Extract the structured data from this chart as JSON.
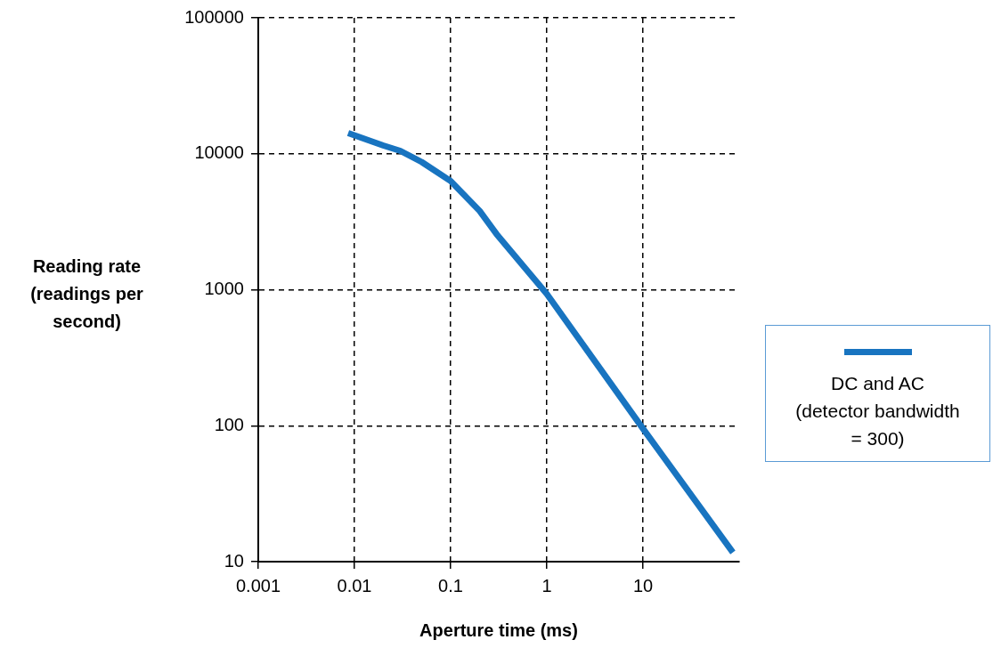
{
  "chart_data": {
    "type": "line",
    "xlabel": "Aperture time (ms)",
    "ylabel": "Reading rate (readings per second)",
    "log": "xy",
    "x": [
      0.0086,
      0.02,
      0.03,
      0.05,
      0.1,
      0.2,
      0.3,
      1,
      10,
      86
    ],
    "series": [
      {
        "name": "DC and AC (detector bandwidth = 300)",
        "color": "#1874c0",
        "values": [
          14200,
          11500,
          10500,
          8700,
          6300,
          3800,
          2570,
          930,
          95,
          11.7
        ]
      }
    ],
    "xlim": [
      0.001,
      100
    ],
    "xticks": [
      0.001,
      0.01,
      0.1,
      1,
      10
    ],
    "ylim": [
      10,
      100000
    ],
    "yticks": [
      10,
      100,
      1000,
      10000,
      100000
    ],
    "grid": true,
    "legend": "right",
    "marker": "none",
    "line_style": "solid"
  }
}
